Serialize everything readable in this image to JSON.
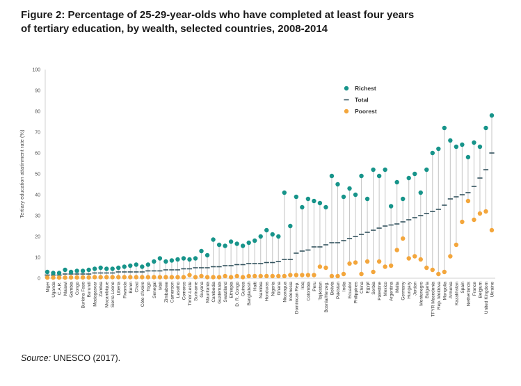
{
  "title": "Figure 2: Percentage of 25-29-year-olds who have completed at least four years of tertiary education, by wealth, selected countries, 2008-2014",
  "source": {
    "label": "Source:",
    "text": " UNESCO (2017)."
  },
  "chart_data": {
    "type": "scatter",
    "variant": "lollipop-range",
    "title": "",
    "xlabel": "",
    "ylabel": "Tertiary education attatinment rate (%)",
    "ylim": [
      0,
      100
    ],
    "ytick_step": 10,
    "grid": false,
    "legend_position": "upper-right-inside",
    "legend_entries": [
      "Richest",
      "Total",
      "Poorest"
    ],
    "colors": {
      "richest": "#17948a",
      "total": "#33535e",
      "poorest": "#f3a63c",
      "stem": "#c9c9c9",
      "axis": "#d0d0d0",
      "text": "#4d4d4d"
    },
    "categories": [
      "Niger",
      "Uganda",
      "C.A.R.",
      "Malawi",
      "Gambia",
      "Congo",
      "Burkina Faso",
      "Burundi",
      "Madagascar",
      "Zambia",
      "Mozambique",
      "Sierra Leone",
      "Liberia",
      "Rwanda",
      "Benin",
      "Chad",
      "Côte d'Ivoire",
      "Togo",
      "Senegal",
      "Mali",
      "Zimbabwe",
      "Cameroon",
      "Lesotho",
      "Comoros",
      "Timor-Leste",
      "Suriname",
      "Guyana",
      "Mauritania",
      "Cambodia",
      "Guatemala",
      "Swaziland",
      "Ethiopia",
      "D. R. Congo",
      "Guinea",
      "Bangladesh",
      "Haiti",
      "Namibia",
      "Honduras",
      "Nigeria",
      "Ghana",
      "Nicaragua",
      "Indonesia",
      "Dominican Rep.",
      "Iraq",
      "Colombia",
      "Peru",
      "Tajikistan",
      "Bosnia/Herzeg.",
      "Bolivia",
      "Pakistan",
      "India",
      "Ecuador",
      "Philippines",
      "China",
      "Egypt",
      "Serbia",
      "Palestine",
      "Mexico",
      "Argentina",
      "Malta",
      "Germany",
      "Hungary",
      "Jordan",
      "Montenegro",
      "Bulgaria",
      "TFYR Macedonia",
      "Rep. Moldova",
      "Mongolia",
      "Armenia",
      "Kazakhstan",
      "Spain",
      "Netherlands",
      "France",
      "Belgium",
      "United Kingdom",
      "Ukraine"
    ],
    "series": [
      {
        "name": "Richest",
        "marker": "dot",
        "color_key": "richest",
        "values": [
          3,
          2.5,
          2.5,
          4,
          3,
          3.5,
          3.5,
          4,
          4.5,
          5,
          4.5,
          4.5,
          5,
          5.5,
          6,
          6.5,
          5.5,
          6.5,
          8,
          9.5,
          8,
          8.5,
          9,
          9.5,
          9,
          9.5,
          13,
          11,
          18.5,
          16,
          15.5,
          17.5,
          16.5,
          15.5,
          17,
          18,
          20,
          23,
          21,
          20,
          41,
          25,
          39,
          34,
          38,
          37,
          36,
          34,
          49,
          45,
          39,
          43,
          40,
          49,
          38,
          52,
          49,
          52,
          34.5,
          46,
          38,
          48,
          50,
          41,
          52,
          60,
          62,
          72,
          66,
          63,
          64,
          58,
          65,
          63,
          72,
          78
        ]
      },
      {
        "name": "Total",
        "marker": "dash",
        "color_key": "total",
        "values": [
          1.5,
          1.5,
          1.5,
          2,
          2,
          2,
          2,
          2,
          2.5,
          2.5,
          2.5,
          2.5,
          3,
          3,
          3,
          3,
          3,
          3.5,
          3.5,
          3.5,
          4,
          4,
          4,
          4.5,
          4.5,
          5,
          5,
          5,
          5.5,
          5.5,
          6,
          6,
          6.5,
          6.5,
          7,
          7,
          7,
          7.5,
          7.5,
          8,
          9,
          9,
          12,
          13,
          13.5,
          15,
          15,
          16,
          17,
          17,
          18,
          19,
          20,
          21,
          22,
          23,
          24,
          25,
          25.5,
          26,
          27,
          28,
          29,
          30,
          31,
          32,
          33,
          35,
          38,
          39,
          40,
          41,
          44,
          48,
          52,
          60
        ]
      },
      {
        "name": "Poorest",
        "marker": "dot",
        "color_key": "poorest",
        "values": [
          0.3,
          0.3,
          0.3,
          0.3,
          0.4,
          0.4,
          0.4,
          0.4,
          0.5,
          0.5,
          0.5,
          0.5,
          0.5,
          0.5,
          0.5,
          0.5,
          0.5,
          0.5,
          0.5,
          0.5,
          0.5,
          0.5,
          0.5,
          0.5,
          1.5,
          0.5,
          1,
          0.5,
          0.5,
          0.5,
          1,
          0.5,
          1,
          0.5,
          1,
          1,
          1,
          1,
          1,
          1,
          1,
          1.5,
          1.5,
          1.5,
          1.5,
          1.5,
          5.5,
          5,
          1,
          1,
          2,
          7,
          7.5,
          2,
          8,
          3,
          8,
          5.5,
          6,
          13.5,
          19,
          9.5,
          10.5,
          9,
          5,
          4,
          2,
          3,
          10.5,
          16,
          27,
          37,
          28,
          31,
          32,
          23
        ]
      }
    ]
  }
}
